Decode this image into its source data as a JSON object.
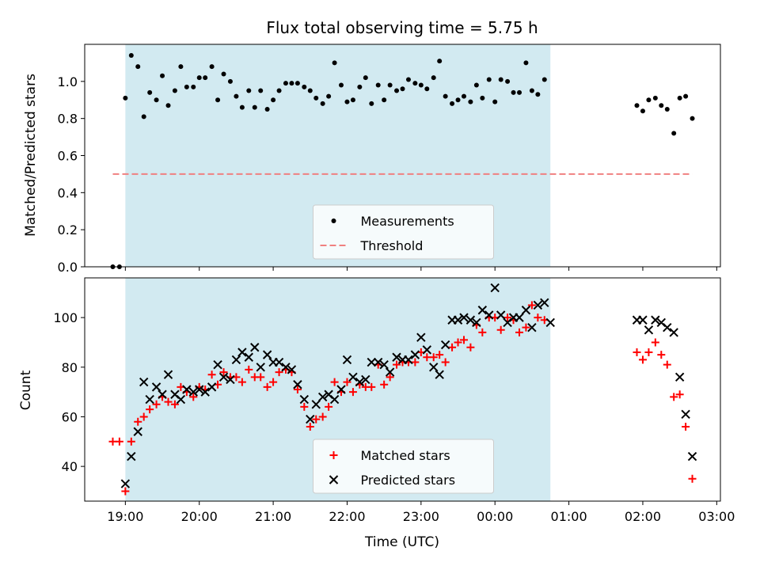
{
  "chart_data": [
    {
      "type": "scatter",
      "title": "Flux total observing time = 5.75 h",
      "xlabel": "",
      "ylabel": "Matched/Predicted stars",
      "ylim": [
        0,
        1.2
      ],
      "yticks": [
        "0.0",
        "0.2",
        "0.4",
        "0.6",
        "0.8",
        "1.0"
      ],
      "xlim": [
        -0.55,
        8.05
      ],
      "xtick_hours": [
        0,
        1,
        2,
        3,
        4,
        5,
        6,
        7,
        8
      ],
      "xtick_labels": [],
      "shaded_span": [
        0.0,
        5.75
      ],
      "shaded_color": "#add8e6",
      "legend": {
        "position": "lower center",
        "entries": [
          "Measurements",
          "Threshold"
        ]
      },
      "series": [
        {
          "name": "Measurements",
          "marker": "dot",
          "color": "#000000",
          "points": [
            [
              -0.17,
              0.0
            ],
            [
              -0.08,
              0.0
            ],
            [
              0.0,
              0.91
            ],
            [
              0.08,
              1.14
            ],
            [
              0.17,
              1.08
            ],
            [
              0.25,
              0.81
            ],
            [
              0.33,
              0.94
            ],
            [
              0.42,
              0.9
            ],
            [
              0.5,
              1.03
            ],
            [
              0.58,
              0.87
            ],
            [
              0.67,
              0.95
            ],
            [
              0.75,
              1.08
            ],
            [
              0.83,
              0.97
            ],
            [
              0.92,
              0.97
            ],
            [
              1.0,
              1.02
            ],
            [
              1.08,
              1.02
            ],
            [
              1.17,
              1.08
            ],
            [
              1.25,
              0.9
            ],
            [
              1.33,
              1.04
            ],
            [
              1.42,
              1.0
            ],
            [
              1.5,
              0.92
            ],
            [
              1.58,
              0.86
            ],
            [
              1.67,
              0.95
            ],
            [
              1.75,
              0.86
            ],
            [
              1.83,
              0.95
            ],
            [
              1.92,
              0.85
            ],
            [
              2.0,
              0.9
            ],
            [
              2.08,
              0.95
            ],
            [
              2.17,
              0.99
            ],
            [
              2.25,
              0.99
            ],
            [
              2.33,
              0.99
            ],
            [
              2.42,
              0.97
            ],
            [
              2.5,
              0.95
            ],
            [
              2.58,
              0.91
            ],
            [
              2.67,
              0.88
            ],
            [
              2.75,
              0.92
            ],
            [
              2.83,
              1.1
            ],
            [
              2.92,
              0.98
            ],
            [
              3.0,
              0.89
            ],
            [
              3.08,
              0.9
            ],
            [
              3.17,
              0.97
            ],
            [
              3.25,
              1.02
            ],
            [
              3.33,
              0.88
            ],
            [
              3.42,
              0.98
            ],
            [
              3.5,
              0.9
            ],
            [
              3.58,
              0.98
            ],
            [
              3.67,
              0.95
            ],
            [
              3.75,
              0.96
            ],
            [
              3.83,
              1.01
            ],
            [
              3.92,
              0.99
            ],
            [
              4.0,
              0.98
            ],
            [
              4.08,
              0.96
            ],
            [
              4.17,
              1.02
            ],
            [
              4.25,
              1.11
            ],
            [
              4.33,
              0.92
            ],
            [
              4.42,
              0.88
            ],
            [
              4.5,
              0.9
            ],
            [
              4.58,
              0.92
            ],
            [
              4.67,
              0.89
            ],
            [
              4.75,
              0.98
            ],
            [
              4.83,
              0.91
            ],
            [
              4.92,
              1.01
            ],
            [
              5.0,
              0.89
            ],
            [
              5.08,
              1.01
            ],
            [
              5.17,
              1.0
            ],
            [
              5.25,
              0.94
            ],
            [
              5.33,
              0.94
            ],
            [
              5.42,
              1.1
            ],
            [
              5.5,
              0.95
            ],
            [
              5.58,
              0.93
            ],
            [
              5.67,
              1.01
            ],
            [
              6.92,
              0.87
            ],
            [
              7.0,
              0.84
            ],
            [
              7.08,
              0.9
            ],
            [
              7.17,
              0.91
            ],
            [
              7.25,
              0.87
            ],
            [
              7.33,
              0.85
            ],
            [
              7.42,
              0.72
            ],
            [
              7.5,
              0.91
            ],
            [
              7.58,
              0.92
            ],
            [
              7.67,
              0.8
            ]
          ]
        },
        {
          "name": "Threshold",
          "marker": "dashed-line",
          "color": "#f08080",
          "points": [
            [
              -0.17,
              0.5
            ],
            [
              7.67,
              0.5
            ]
          ]
        }
      ]
    },
    {
      "type": "scatter",
      "title": "",
      "xlabel": "Time (UTC)",
      "ylabel": "Count",
      "ylim": [
        26,
        116
      ],
      "yticks": [
        "40",
        "60",
        "80",
        "100"
      ],
      "xlim": [
        -0.55,
        8.05
      ],
      "xtick_hours": [
        0,
        1,
        2,
        3,
        4,
        5,
        6,
        7,
        8
      ],
      "xtick_labels": [
        "19:00",
        "20:00",
        "21:00",
        "22:00",
        "23:00",
        "00:00",
        "01:00",
        "02:00",
        "03:00"
      ],
      "shaded_span": [
        0.0,
        5.75
      ],
      "shaded_color": "#add8e6",
      "legend": {
        "position": "lower center",
        "entries": [
          "Matched stars",
          "Predicted stars"
        ]
      },
      "series": [
        {
          "name": "Matched stars",
          "marker": "plus",
          "color": "#ff0000",
          "points": [
            [
              -0.17,
              50
            ],
            [
              -0.08,
              50
            ],
            [
              0.0,
              30
            ],
            [
              0.08,
              50
            ],
            [
              0.17,
              58
            ],
            [
              0.25,
              60
            ],
            [
              0.33,
              63
            ],
            [
              0.42,
              65
            ],
            [
              0.5,
              68
            ],
            [
              0.58,
              66
            ],
            [
              0.67,
              65
            ],
            [
              0.75,
              72
            ],
            [
              0.83,
              70
            ],
            [
              0.92,
              68
            ],
            [
              1.0,
              72
            ],
            [
              1.08,
              71
            ],
            [
              1.17,
              77
            ],
            [
              1.25,
              73
            ],
            [
              1.33,
              78
            ],
            [
              1.42,
              76
            ],
            [
              1.5,
              76
            ],
            [
              1.58,
              74
            ],
            [
              1.67,
              79
            ],
            [
              1.75,
              76
            ],
            [
              1.83,
              76
            ],
            [
              1.92,
              72
            ],
            [
              2.0,
              74
            ],
            [
              2.08,
              78
            ],
            [
              2.17,
              79
            ],
            [
              2.25,
              78
            ],
            [
              2.33,
              71
            ],
            [
              2.42,
              64
            ],
            [
              2.5,
              56
            ],
            [
              2.58,
              59
            ],
            [
              2.67,
              60
            ],
            [
              2.75,
              64
            ],
            [
              2.83,
              74
            ],
            [
              2.92,
              70
            ],
            [
              3.0,
              74
            ],
            [
              3.08,
              70
            ],
            [
              3.17,
              73
            ],
            [
              3.25,
              72
            ],
            [
              3.33,
              72
            ],
            [
              3.42,
              81
            ],
            [
              3.5,
              73
            ],
            [
              3.58,
              76
            ],
            [
              3.67,
              81
            ],
            [
              3.75,
              82
            ],
            [
              3.83,
              82
            ],
            [
              3.92,
              82
            ],
            [
              4.0,
              86
            ],
            [
              4.08,
              84
            ],
            [
              4.17,
              84
            ],
            [
              4.25,
              85
            ],
            [
              4.33,
              82
            ],
            [
              4.42,
              88
            ],
            [
              4.5,
              90
            ],
            [
              4.58,
              91
            ],
            [
              4.67,
              88
            ],
            [
              4.75,
              97
            ],
            [
              4.83,
              94
            ],
            [
              4.92,
              100
            ],
            [
              5.0,
              100
            ],
            [
              5.08,
              95
            ],
            [
              5.17,
              100
            ],
            [
              5.25,
              99
            ],
            [
              5.33,
              94
            ],
            [
              5.42,
              96
            ],
            [
              5.5,
              105
            ],
            [
              5.58,
              100
            ],
            [
              5.67,
              99
            ],
            [
              6.92,
              86
            ],
            [
              7.0,
              83
            ],
            [
              7.08,
              86
            ],
            [
              7.17,
              90
            ],
            [
              7.25,
              85
            ],
            [
              7.33,
              81
            ],
            [
              7.42,
              68
            ],
            [
              7.5,
              69
            ],
            [
              7.58,
              56
            ],
            [
              7.67,
              35
            ]
          ]
        },
        {
          "name": "Predicted stars",
          "marker": "x",
          "color": "#000000",
          "points": [
            [
              0.0,
              33
            ],
            [
              0.08,
              44
            ],
            [
              0.17,
              54
            ],
            [
              0.25,
              74
            ],
            [
              0.33,
              67
            ],
            [
              0.42,
              72
            ],
            [
              0.5,
              69
            ],
            [
              0.58,
              77
            ],
            [
              0.67,
              69
            ],
            [
              0.75,
              67
            ],
            [
              0.83,
              71
            ],
            [
              0.92,
              70
            ],
            [
              1.0,
              71
            ],
            [
              1.08,
              70
            ],
            [
              1.17,
              72
            ],
            [
              1.25,
              81
            ],
            [
              1.33,
              76
            ],
            [
              1.42,
              75
            ],
            [
              1.5,
              83
            ],
            [
              1.58,
              86
            ],
            [
              1.67,
              84
            ],
            [
              1.75,
              88
            ],
            [
              1.83,
              80
            ],
            [
              1.92,
              85
            ],
            [
              2.0,
              82
            ],
            [
              2.08,
              82
            ],
            [
              2.17,
              80
            ],
            [
              2.25,
              79
            ],
            [
              2.33,
              73
            ],
            [
              2.42,
              67
            ],
            [
              2.5,
              59
            ],
            [
              2.58,
              65
            ],
            [
              2.67,
              68
            ],
            [
              2.75,
              69
            ],
            [
              2.83,
              67
            ],
            [
              2.92,
              71
            ],
            [
              3.0,
              83
            ],
            [
              3.08,
              76
            ],
            [
              3.17,
              74
            ],
            [
              3.25,
              75
            ],
            [
              3.33,
              82
            ],
            [
              3.42,
              82
            ],
            [
              3.5,
              81
            ],
            [
              3.58,
              78
            ],
            [
              3.67,
              84
            ],
            [
              3.75,
              83
            ],
            [
              3.83,
              83
            ],
            [
              3.92,
              85
            ],
            [
              4.0,
              92
            ],
            [
              4.08,
              87
            ],
            [
              4.17,
              80
            ],
            [
              4.25,
              77
            ],
            [
              4.33,
              89
            ],
            [
              4.42,
              99
            ],
            [
              4.5,
              99
            ],
            [
              4.58,
              100
            ],
            [
              4.67,
              99
            ],
            [
              4.75,
              98
            ],
            [
              4.83,
              103
            ],
            [
              4.92,
              101
            ],
            [
              5.0,
              112
            ],
            [
              5.08,
              101
            ],
            [
              5.17,
              98
            ],
            [
              5.25,
              100
            ],
            [
              5.33,
              100
            ],
            [
              5.42,
              103
            ],
            [
              5.5,
              96
            ],
            [
              5.58,
              105
            ],
            [
              5.67,
              106
            ],
            [
              5.75,
              98
            ],
            [
              6.92,
              99
            ],
            [
              7.0,
              99
            ],
            [
              7.08,
              95
            ],
            [
              7.17,
              99
            ],
            [
              7.25,
              98
            ],
            [
              7.33,
              96
            ],
            [
              7.42,
              94
            ],
            [
              7.5,
              76
            ],
            [
              7.58,
              61
            ],
            [
              7.67,
              44
            ]
          ]
        }
      ]
    }
  ]
}
